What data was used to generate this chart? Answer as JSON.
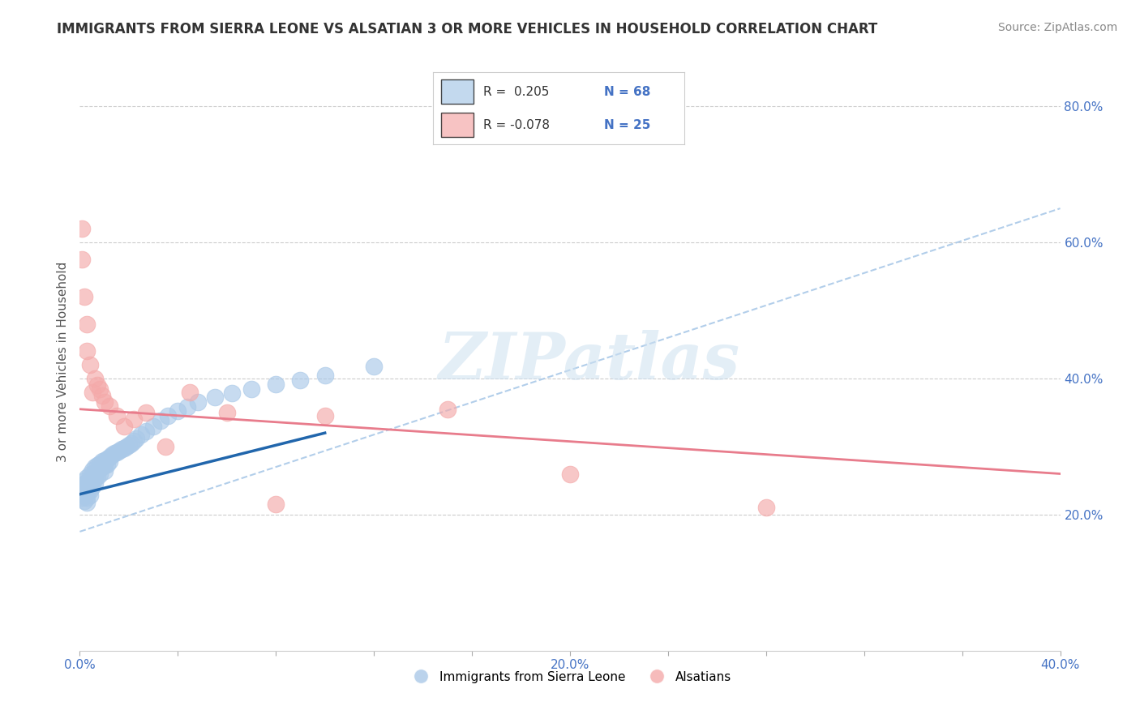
{
  "title": "IMMIGRANTS FROM SIERRA LEONE VS ALSATIAN 3 OR MORE VEHICLES IN HOUSEHOLD CORRELATION CHART",
  "source": "Source: ZipAtlas.com",
  "ylabel": "3 or more Vehicles in Household",
  "xmin": 0.0,
  "xmax": 0.4,
  "ymin": 0.0,
  "ymax": 0.85,
  "x_tick_vals": [
    0.0,
    0.04,
    0.08,
    0.12,
    0.16,
    0.2,
    0.24,
    0.28,
    0.32,
    0.36,
    0.4
  ],
  "x_tick_labels": [
    "0.0%",
    "",
    "",
    "",
    "",
    "20.0%",
    "",
    "",
    "",
    "",
    "40.0%"
  ],
  "y_ticks_right": [
    0.2,
    0.4,
    0.6,
    0.8
  ],
  "y_tick_labels_right": [
    "20.0%",
    "40.0%",
    "60.0%",
    "80.0%"
  ],
  "legend_blue_R": "0.205",
  "legend_blue_N": "68",
  "legend_pink_R": "-0.078",
  "legend_pink_N": "25",
  "legend_labels": [
    "Immigrants from Sierra Leone",
    "Alsatians"
  ],
  "blue_color": "#aac9e8",
  "pink_color": "#f4aaaa",
  "blue_line_color": "#2166ac",
  "pink_line_color": "#e87c8c",
  "dashed_line_color": "#aac9e8",
  "watermark_text": "ZIPatlas",
  "blue_scatter_x": [
    0.001,
    0.001,
    0.001,
    0.002,
    0.002,
    0.002,
    0.002,
    0.002,
    0.003,
    0.003,
    0.003,
    0.003,
    0.003,
    0.003,
    0.004,
    0.004,
    0.004,
    0.004,
    0.004,
    0.005,
    0.005,
    0.005,
    0.005,
    0.006,
    0.006,
    0.006,
    0.006,
    0.007,
    0.007,
    0.007,
    0.008,
    0.008,
    0.008,
    0.009,
    0.009,
    0.01,
    0.01,
    0.01,
    0.011,
    0.011,
    0.012,
    0.012,
    0.013,
    0.014,
    0.015,
    0.016,
    0.017,
    0.018,
    0.019,
    0.02,
    0.021,
    0.022,
    0.023,
    0.025,
    0.027,
    0.03,
    0.033,
    0.036,
    0.04,
    0.044,
    0.048,
    0.055,
    0.062,
    0.07,
    0.08,
    0.09,
    0.1,
    0.12
  ],
  "blue_scatter_y": [
    0.24,
    0.235,
    0.225,
    0.25,
    0.245,
    0.235,
    0.228,
    0.22,
    0.255,
    0.248,
    0.24,
    0.232,
    0.225,
    0.218,
    0.26,
    0.252,
    0.244,
    0.236,
    0.228,
    0.265,
    0.258,
    0.25,
    0.242,
    0.27,
    0.262,
    0.254,
    0.246,
    0.272,
    0.264,
    0.256,
    0.275,
    0.268,
    0.26,
    0.278,
    0.27,
    0.28,
    0.272,
    0.264,
    0.282,
    0.274,
    0.285,
    0.278,
    0.288,
    0.29,
    0.292,
    0.294,
    0.296,
    0.298,
    0.3,
    0.302,
    0.305,
    0.308,
    0.312,
    0.318,
    0.322,
    0.33,
    0.338,
    0.345,
    0.352,
    0.358,
    0.365,
    0.372,
    0.378,
    0.385,
    0.392,
    0.398,
    0.405,
    0.418
  ],
  "pink_scatter_x": [
    0.001,
    0.001,
    0.002,
    0.003,
    0.003,
    0.004,
    0.005,
    0.006,
    0.007,
    0.008,
    0.009,
    0.01,
    0.012,
    0.015,
    0.018,
    0.022,
    0.027,
    0.035,
    0.045,
    0.06,
    0.08,
    0.1,
    0.15,
    0.2,
    0.28
  ],
  "pink_scatter_y": [
    0.62,
    0.575,
    0.52,
    0.48,
    0.44,
    0.42,
    0.38,
    0.4,
    0.39,
    0.385,
    0.375,
    0.365,
    0.36,
    0.345,
    0.33,
    0.34,
    0.35,
    0.3,
    0.38,
    0.35,
    0.215,
    0.345,
    0.355,
    0.26,
    0.21
  ],
  "blue_line_x0": 0.0,
  "blue_line_x1": 0.1,
  "blue_line_y0": 0.23,
  "blue_line_y1": 0.32,
  "pink_line_x0": 0.0,
  "pink_line_x1": 0.4,
  "pink_line_y0": 0.355,
  "pink_line_y1": 0.26,
  "dashed_line_x0": 0.0,
  "dashed_line_x1": 0.4,
  "dashed_line_y0": 0.175,
  "dashed_line_y1": 0.65,
  "background_color": "#ffffff",
  "grid_color": "#cccccc"
}
